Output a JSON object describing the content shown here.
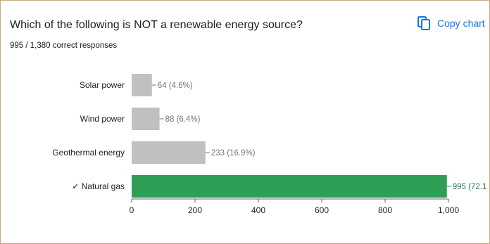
{
  "question": {
    "title": "Which of the following is NOT a renewable energy source?",
    "responses": "995 / 1,380 correct responses"
  },
  "toolbar": {
    "copy_label": "Copy chart",
    "copy_icon": "copy-icon"
  },
  "colors": {
    "incorrect_bar": "#c0c0c0",
    "correct_bar": "#2e9e55",
    "incorrect_label": "#757575",
    "correct_label": "#2e7d4f",
    "accent": "#1a73e8"
  },
  "chart_data": {
    "type": "bar",
    "orientation": "horizontal",
    "categories": [
      "Solar power",
      "Wind power",
      "Geothermal energy",
      "✓ Natural gas"
    ],
    "values": [
      64,
      88,
      233,
      995
    ],
    "value_labels": [
      "64 (4.6%)",
      "88 (6.4%)",
      "233 (16.9%)",
      "995 (72.1"
    ],
    "correct": [
      false,
      false,
      false,
      true
    ],
    "xlim": [
      0,
      1000
    ],
    "xticks": [
      0,
      200,
      400,
      600,
      800,
      1000
    ],
    "xtick_labels": [
      "0",
      "200",
      "400",
      "600",
      "800",
      "1,000"
    ],
    "grid": false
  }
}
